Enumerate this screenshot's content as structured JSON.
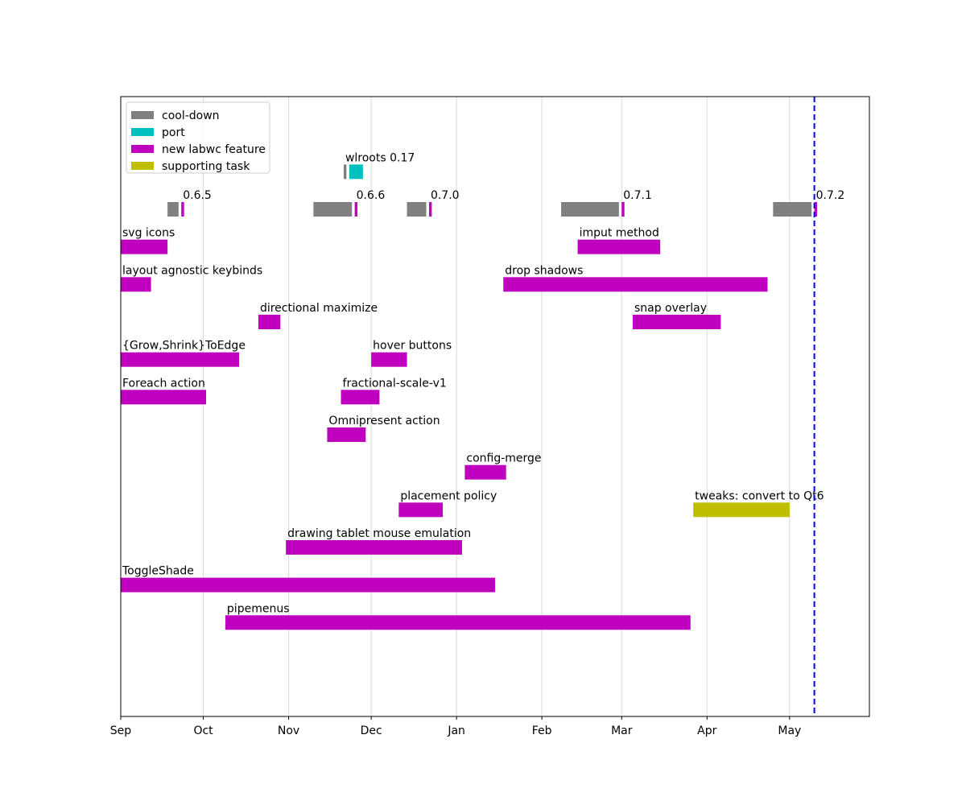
{
  "chart_data": {
    "type": "gantt",
    "x_axis": {
      "unit": "days since Sep 1",
      "range": [
        0,
        272
      ],
      "ticks": [
        {
          "label": "Sep",
          "day": 0
        },
        {
          "label": "Oct",
          "day": 30
        },
        {
          "label": "Nov",
          "day": 61
        },
        {
          "label": "Dec",
          "day": 91
        },
        {
          "label": "Jan",
          "day": 122
        },
        {
          "label": "Feb",
          "day": 153
        },
        {
          "label": "Mar",
          "day": 182
        },
        {
          "label": "Apr",
          "day": 213
        },
        {
          "label": "May",
          "day": 243
        }
      ]
    },
    "y_axis": {
      "range": [
        0,
        16.5
      ],
      "ticks": []
    },
    "grid": "vertical",
    "current_day": 252,
    "colors": {
      "cool-down": "#808080",
      "port": "#00bfbf",
      "new labwc feature": "#bf00bf",
      "supporting task": "#bfbf00",
      "current_line": "#0000ff",
      "grid": "#d9d9d9"
    },
    "legend": {
      "position": "upper-left",
      "entries": [
        {
          "label": "cool-down",
          "category": "cool-down"
        },
        {
          "label": "port",
          "category": "port"
        },
        {
          "label": "new labwc feature",
          "category": "new labwc feature"
        },
        {
          "label": "supporting task",
          "category": "supporting task"
        }
      ]
    },
    "tasks": [
      {
        "label": "wlroots 0.17",
        "row": 14.5,
        "start": 81,
        "end": 82,
        "category": "cool-down"
      },
      {
        "label": "",
        "row": 14.5,
        "start": 83,
        "end": 88,
        "category": "port"
      },
      {
        "label": "",
        "row": 13.5,
        "start": 17,
        "end": 21,
        "category": "cool-down"
      },
      {
        "label": "0.6.5",
        "row": 13.5,
        "start": 22,
        "end": 23,
        "category": "new labwc feature"
      },
      {
        "label": "",
        "row": 13.5,
        "start": 70,
        "end": 84,
        "category": "cool-down"
      },
      {
        "label": "0.6.6",
        "row": 13.5,
        "start": 85,
        "end": 86,
        "category": "new labwc feature"
      },
      {
        "label": "",
        "row": 13.5,
        "start": 104,
        "end": 111,
        "category": "cool-down"
      },
      {
        "label": "0.7.0",
        "row": 13.5,
        "start": 112,
        "end": 113,
        "category": "new labwc feature"
      },
      {
        "label": "",
        "row": 13.5,
        "start": 160,
        "end": 181,
        "category": "cool-down"
      },
      {
        "label": "0.7.1",
        "row": 13.5,
        "start": 182,
        "end": 183,
        "category": "new labwc feature"
      },
      {
        "label": "",
        "row": 13.5,
        "start": 237,
        "end": 251,
        "category": "cool-down"
      },
      {
        "label": "0.7.2",
        "row": 13.5,
        "start": 252,
        "end": 253,
        "category": "new labwc feature"
      },
      {
        "label": "svg icons",
        "row": 12.5,
        "start": 0,
        "end": 17,
        "category": "new labwc feature"
      },
      {
        "label": "imput method",
        "row": 12.5,
        "start": 166,
        "end": 196,
        "category": "new labwc feature"
      },
      {
        "label": "layout agnostic keybinds",
        "row": 11.5,
        "start": 0,
        "end": 11,
        "category": "new labwc feature"
      },
      {
        "label": "drop shadows",
        "row": 11.5,
        "start": 139,
        "end": 235,
        "category": "new labwc feature"
      },
      {
        "label": "directional maximize",
        "row": 10.5,
        "start": 50,
        "end": 58,
        "category": "new labwc feature"
      },
      {
        "label": "snap overlay",
        "row": 10.5,
        "start": 186,
        "end": 218,
        "category": "new labwc feature"
      },
      {
        "label": "{Grow,Shrink}ToEdge",
        "row": 9.5,
        "start": 0,
        "end": 43,
        "category": "new labwc feature"
      },
      {
        "label": "hover buttons",
        "row": 9.5,
        "start": 91,
        "end": 104,
        "category": "new labwc feature"
      },
      {
        "label": "Foreach action",
        "row": 8.5,
        "start": 0,
        "end": 31,
        "category": "new labwc feature"
      },
      {
        "label": "fractional-scale-v1",
        "row": 8.5,
        "start": 80,
        "end": 94,
        "category": "new labwc feature"
      },
      {
        "label": "Omnipresent action",
        "row": 7.5,
        "start": 75,
        "end": 89,
        "category": "new labwc feature"
      },
      {
        "label": "config-merge",
        "row": 6.5,
        "start": 125,
        "end": 140,
        "category": "new labwc feature"
      },
      {
        "label": "placement policy",
        "row": 5.5,
        "start": 101,
        "end": 117,
        "category": "new labwc feature"
      },
      {
        "label": "tweaks: convert to Qt6",
        "row": 5.5,
        "start": 208,
        "end": 243,
        "category": "supporting task"
      },
      {
        "label": "drawing tablet mouse emulation",
        "row": 4.5,
        "start": 60,
        "end": 124,
        "category": "new labwc feature"
      },
      {
        "label": "ToggleShade",
        "row": 3.5,
        "start": 0,
        "end": 136,
        "category": "new labwc feature"
      },
      {
        "label": "pipemenus",
        "row": 2.5,
        "start": 38,
        "end": 207,
        "category": "new labwc feature"
      }
    ]
  }
}
